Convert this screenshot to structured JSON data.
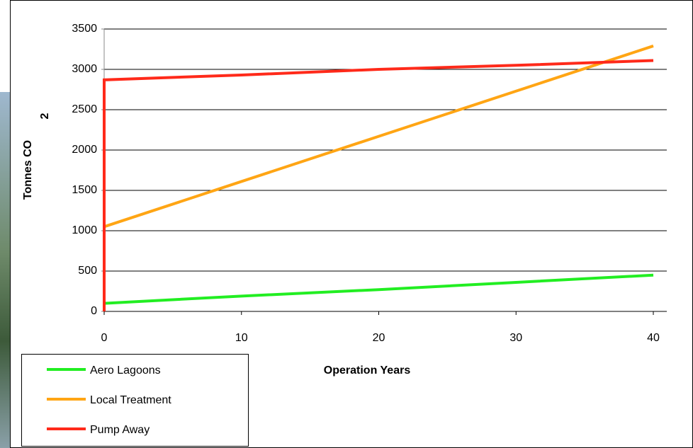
{
  "chart_data": {
    "type": "line",
    "xlabel": "Operation Years",
    "ylabel": "Tonnes CO",
    "ylabel_subscript": "2",
    "xlim": [
      0,
      40
    ],
    "xticks": [
      0,
      10,
      20,
      30,
      40
    ],
    "ylim": [
      0,
      3500
    ],
    "yticks": [
      0,
      500,
      1000,
      1500,
      2000,
      2500,
      3000,
      3500
    ],
    "grid": true,
    "legend": "bottom-left",
    "series": [
      {
        "name": "Aero Lagoons",
        "color": "#22ee22",
        "x": [
          0,
          10,
          20,
          30,
          40
        ],
        "values": [
          100,
          190,
          270,
          360,
          450
        ]
      },
      {
        "name": "Local Treatment",
        "color": "#ffa514",
        "x": [
          0,
          10,
          20,
          30,
          40
        ],
        "values": [
          1050,
          1610,
          2170,
          2730,
          3290
        ]
      },
      {
        "name": "Pump Away",
        "color": "#ff2a1a",
        "x": [
          0,
          0,
          10,
          20,
          30,
          40
        ],
        "values": [
          0,
          2870,
          2930,
          3000,
          3050,
          3110
        ]
      }
    ]
  }
}
